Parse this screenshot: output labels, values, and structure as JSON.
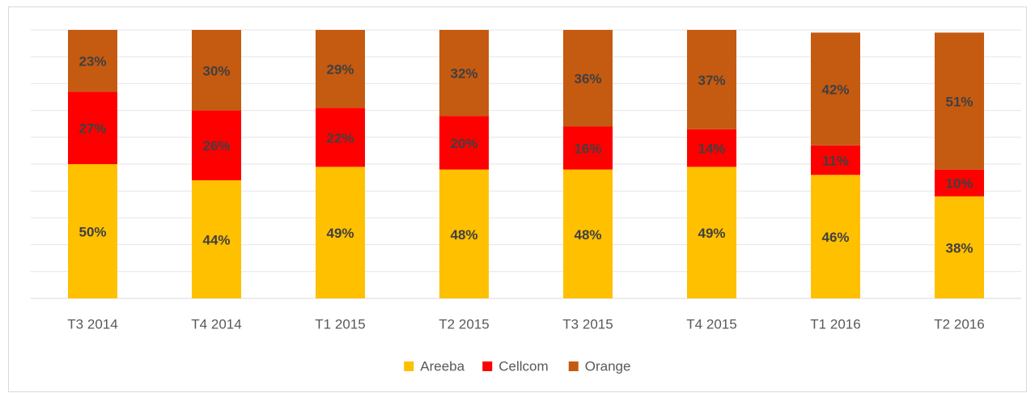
{
  "chart_data": {
    "type": "stacked_bar",
    "categories": [
      "T3 2014",
      "T4 2014",
      "T1 2015",
      "T2 2015",
      "T3 2015",
      "T4 2015",
      "T1 2016",
      "T2 2016"
    ],
    "series": [
      {
        "name": "Areeba",
        "color": "#FFC000",
        "values": [
          50,
          44,
          49,
          48,
          48,
          49,
          46,
          38
        ],
        "value_labels": [
          "50%",
          "44%",
          "49%",
          "48%",
          "48%",
          "49%",
          "46%",
          "38%"
        ]
      },
      {
        "name": "Cellcom",
        "color": "#FF0000",
        "values": [
          27,
          26,
          22,
          20,
          16,
          14,
          11,
          10
        ],
        "value_labels": [
          "27%",
          "26%",
          "22%",
          "20%",
          "16%",
          "14%",
          "11%",
          "10%"
        ]
      },
      {
        "name": "Orange",
        "color": "#C55A11",
        "values": [
          23,
          30,
          29,
          32,
          36,
          37,
          42,
          51
        ],
        "value_labels": [
          "23%",
          "30%",
          "29%",
          "32%",
          "36%",
          "37%",
          "42%",
          "51%"
        ]
      }
    ],
    "ylim": [
      0,
      100
    ],
    "yticks": [
      0,
      10,
      20,
      30,
      40,
      50,
      60,
      70,
      80,
      90,
      100
    ],
    "grid": true,
    "legend": "bottom"
  }
}
